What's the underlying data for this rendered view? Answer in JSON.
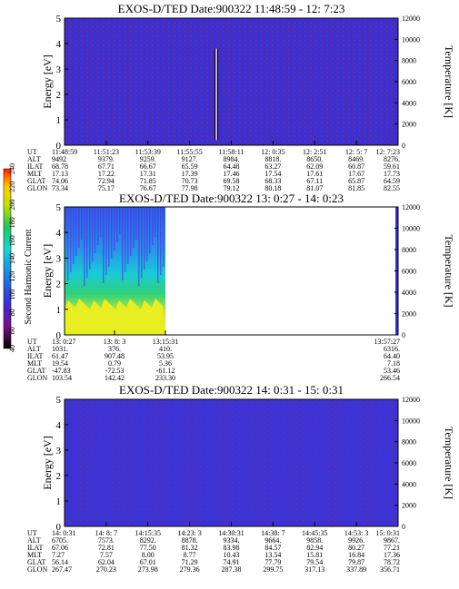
{
  "panels": [
    {
      "title": "EXOS-D/TED   Date:900322  11:48:59 - 12: 7:23",
      "ylabel_left": "Energy [eV]",
      "ylabel_right": "Temperature [K]",
      "y_ticks_left": [
        "0",
        "1",
        "2",
        "3",
        "4",
        "5"
      ],
      "y_ticks_right": [
        "0",
        "2000",
        "4000",
        "6000",
        "8000",
        "10000",
        "12000"
      ],
      "row_labels": [
        "UT",
        "ALT",
        "ILAT",
        "MLT",
        "GLAT",
        "GLON"
      ],
      "columns": [
        [
          "11:48:59",
          "9492",
          "68.78",
          "17.13",
          "74.06",
          "73.34"
        ],
        [
          "11:51:23",
          "9379.",
          "67.71",
          "17.22",
          "72.94",
          "75.17"
        ],
        [
          "11:53:39",
          "9259.",
          "66.67",
          "17.31",
          "71.85",
          "76.67"
        ],
        [
          "11:55:55",
          "9127.",
          "65.59",
          "17.39",
          "70.73",
          "77.98"
        ],
        [
          "11:58:11",
          "8984.",
          "64.48",
          "17.46",
          "69.58",
          "79.12"
        ],
        [
          "12: 0:35",
          "8818.",
          "63.27",
          "17.54",
          "68.33",
          "80.18"
        ],
        [
          "12: 2:51",
          "8650.",
          "62.09",
          "17.61",
          "67.11",
          "81.07"
        ],
        [
          "12: 5: 7",
          "8469.",
          "60.87",
          "17.67",
          "65.87",
          "81.85"
        ],
        [
          "12: 7:23",
          "8276.",
          "59.61",
          "17.73",
          "64.59",
          "82.55"
        ]
      ]
    },
    {
      "title": "EXOS-D/TED   Date:900322  13: 0:27 - 14: 0:23",
      "ylabel_left": "Energy [eV]",
      "ylabel_right": "Temperature [K]",
      "y_ticks_left": [
        "0",
        "1",
        "2",
        "3",
        "4",
        "5"
      ],
      "y_ticks_right": [
        "0",
        "2000",
        "4000",
        "6000",
        "8000",
        "10000",
        "12000"
      ],
      "row_labels": [
        "UT",
        "ALT",
        "ILAT",
        "MLT",
        "GLAT",
        "GLON"
      ],
      "columns": [
        [
          "13: 0:27",
          "1031.",
          "61.47",
          "19.54",
          "-47.83",
          "103.54"
        ],
        [
          "13: 8: 3",
          "376.",
          "907.48",
          "0.79",
          "-72.53",
          "142.42"
        ],
        [
          "13:15:31",
          "410.",
          "53.95",
          "5.36",
          "-61.12",
          "233.30"
        ],
        [
          "13:57:27",
          "6316.",
          "64.40",
          "7.18",
          "53.46",
          "266.54"
        ]
      ],
      "colorbar_label": "Second Harmonic Current",
      "colorbar_ticks": [
        "40",
        "60",
        "80",
        "100",
        "120",
        "140",
        "160",
        "180",
        "200",
        "220",
        "240"
      ]
    },
    {
      "title": "EXOS-D/TED   Date:900322  14: 0:31 - 15: 0:31",
      "ylabel_left": "Energy [eV]",
      "ylabel_right": "Temperature [K]",
      "y_ticks_left": [
        "0",
        "1",
        "2",
        "3",
        "4",
        "5"
      ],
      "y_ticks_right": [
        "0",
        "2000",
        "4000",
        "6000",
        "8000",
        "10000",
        "12000"
      ],
      "row_labels": [
        "UT",
        "ALT",
        "ILAT",
        "MLT",
        "GLAT",
        "GLON"
      ],
      "columns": [
        [
          "14: 0:31",
          "6705.",
          "67.06",
          "7.27",
          "56.14",
          "267.47"
        ],
        [
          "14: 8: 7",
          "7573.",
          "72.81",
          "7.57",
          "62.04",
          "270.23"
        ],
        [
          "14:15:35",
          "8292.",
          "77.50",
          "8.00",
          "67.01",
          "273.98"
        ],
        [
          "14:23: 3",
          "8878.",
          "81.32",
          "8.77",
          "71.29",
          "279.36"
        ],
        [
          "14:30:31",
          "9334.",
          "83.98",
          "10.43",
          "74.91",
          "287.38"
        ],
        [
          "14:38: 7",
          "9664.",
          "84.57",
          "13.54",
          "77.79",
          "299.75"
        ],
        [
          "14:45:35",
          "9858.",
          "82.94",
          "15.81",
          "79.54",
          "317.13"
        ],
        [
          "14:53: 3",
          "9926.",
          "80.27",
          "16.84",
          "79.87",
          "337.89"
        ],
        [
          "15: 0:31",
          "9867.",
          "77.21",
          "17.36",
          "78.72",
          "356.71"
        ]
      ]
    }
  ],
  "colors": {
    "background_fill": "#3a2fd0",
    "noise": "#8a2a7a",
    "spike_white": "#ffffff",
    "spike_black": "#000000"
  },
  "chart_data": [
    {
      "type": "heatmap",
      "title": "EXOS-D/TED   Date:900322  11:48:59 - 12: 7:23",
      "ylabel": "Energy [eV]",
      "y2label": "Temperature [K]",
      "ylim": [
        0,
        5
      ],
      "y2lim": [
        0,
        12000
      ],
      "x_ticks": [
        "11:48:59",
        "11:51:23",
        "11:53:39",
        "11:55:55",
        "11:58:11",
        "12: 0:35",
        "12: 2:51",
        "12: 5: 7",
        "12: 7:23"
      ],
      "features": [
        {
          "kind": "vertical spike",
          "x": "~11:55",
          "y_range": [
            0.2,
            3.8
          ]
        }
      ]
    },
    {
      "type": "heatmap",
      "title": "EXOS-D/TED   Date:900322  13: 0:27 - 14: 0:23",
      "ylabel": "Energy [eV]",
      "y2label": "Temperature [K]",
      "ylim": [
        0,
        5
      ],
      "y2lim": [
        0,
        12000
      ],
      "x_ticks": [
        "13: 0:27",
        "13: 8: 3",
        "13:15:31",
        "13:57:27"
      ],
      "colorbar": {
        "label": "Second Harmonic Current",
        "range": [
          40,
          240
        ]
      },
      "data_coverage": [
        [
          "13: 0:27",
          "13:15:31"
        ],
        [
          "13:57:27",
          "14: 0:23"
        ]
      ]
    },
    {
      "type": "heatmap",
      "title": "EXOS-D/TED   Date:900322  14: 0:31 - 15: 0:31",
      "ylabel": "Energy [eV]",
      "y2label": "Temperature [K]",
      "ylim": [
        0,
        5
      ],
      "y2lim": [
        0,
        12000
      ],
      "x_ticks": [
        "14: 0:31",
        "14: 8: 7",
        "14:15:35",
        "14:23: 3",
        "14:30:31",
        "14:38: 7",
        "14:45:35",
        "14:53: 3",
        "15: 0:31"
      ]
    }
  ]
}
